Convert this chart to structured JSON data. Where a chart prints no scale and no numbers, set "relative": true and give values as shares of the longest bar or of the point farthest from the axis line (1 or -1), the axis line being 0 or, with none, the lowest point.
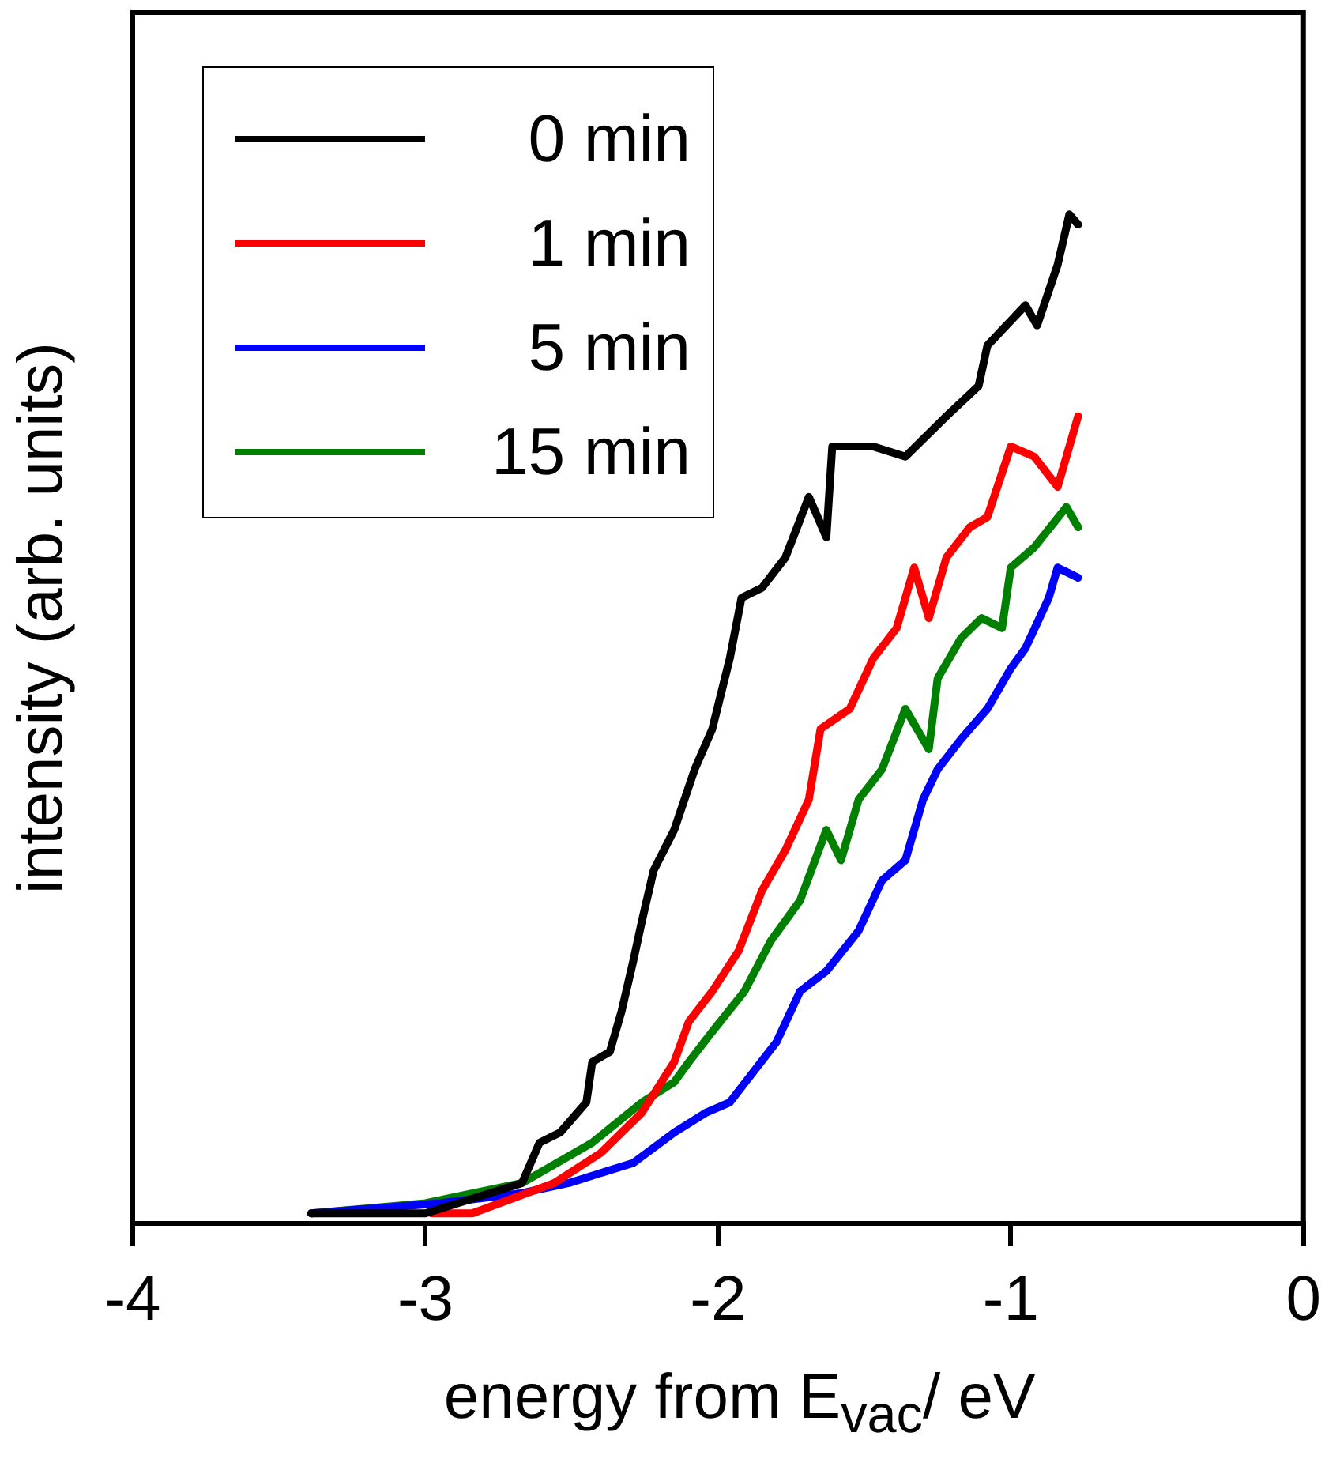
{
  "chart_data": {
    "type": "line",
    "xlabel": "energy from E$_{vac}$/ eV",
    "ylabel": "intensity (arb. units)",
    "relative": true,
    "xlim": [
      -4,
      0
    ],
    "xticks": [
      -4,
      -3,
      -2,
      -1,
      0
    ],
    "grid": false,
    "legend": "top left",
    "line_style": "solid",
    "marker": "none",
    "series": [
      {
        "name": "0 min",
        "color": "#000000",
        "x": [
          -3.39,
          -3.0,
          -2.67,
          -2.61,
          -2.54,
          -2.45,
          -2.43,
          -2.37,
          -2.33,
          -2.29,
          -2.26,
          -2.22,
          -2.15,
          -2.08,
          -2.02,
          -1.96,
          -1.92,
          -1.85,
          -1.77,
          -1.69,
          -1.63,
          -1.61,
          -1.47,
          -1.36,
          -1.22,
          -1.11,
          -1.08,
          -0.95,
          -0.91,
          -0.84,
          -0.8,
          -0.77
        ],
        "values": [
          0.01,
          0.01,
          0.04,
          0.08,
          0.09,
          0.12,
          0.16,
          0.17,
          0.21,
          0.26,
          0.3,
          0.35,
          0.39,
          0.45,
          0.49,
          0.56,
          0.62,
          0.63,
          0.66,
          0.72,
          0.68,
          0.77,
          0.77,
          0.76,
          0.8,
          0.83,
          0.87,
          0.91,
          0.89,
          0.95,
          1.0,
          0.99
        ]
      },
      {
        "name": "1 min",
        "color": "#ff0000",
        "x": [
          -2.98,
          -2.84,
          -2.56,
          -2.4,
          -2.26,
          -2.15,
          -2.1,
          -2.02,
          -1.93,
          -1.85,
          -1.77,
          -1.69,
          -1.65,
          -1.55,
          -1.47,
          -1.39,
          -1.33,
          -1.28,
          -1.22,
          -1.14,
          -1.08,
          -1.0,
          -0.92,
          -0.84,
          -0.77
        ],
        "values": [
          0.01,
          0.01,
          0.04,
          0.07,
          0.11,
          0.16,
          0.2,
          0.23,
          0.27,
          0.33,
          0.37,
          0.42,
          0.49,
          0.51,
          0.56,
          0.59,
          0.65,
          0.6,
          0.66,
          0.69,
          0.7,
          0.77,
          0.76,
          0.73,
          0.8
        ]
      },
      {
        "name": "5 min",
        "color": "#0000ff",
        "x": [
          -3.39,
          -2.95,
          -2.67,
          -2.51,
          -2.29,
          -2.15,
          -2.04,
          -1.96,
          -1.88,
          -1.8,
          -1.72,
          -1.63,
          -1.52,
          -1.44,
          -1.36,
          -1.3,
          -1.25,
          -1.17,
          -1.08,
          -1.0,
          -0.95,
          -0.87,
          -0.84,
          -0.77
        ],
        "values": [
          0.01,
          0.02,
          0.03,
          0.04,
          0.06,
          0.09,
          0.11,
          0.12,
          0.15,
          0.18,
          0.23,
          0.25,
          0.29,
          0.34,
          0.36,
          0.42,
          0.45,
          0.48,
          0.51,
          0.55,
          0.57,
          0.62,
          0.65,
          0.64
        ]
      },
      {
        "name": "15 min",
        "color": "#008000",
        "x": [
          -3.39,
          -3.0,
          -2.67,
          -2.43,
          -2.26,
          -2.15,
          -2.1,
          -2.02,
          -1.91,
          -1.82,
          -1.72,
          -1.63,
          -1.58,
          -1.52,
          -1.44,
          -1.36,
          -1.28,
          -1.25,
          -1.17,
          -1.1,
          -1.03,
          -1.0,
          -0.92,
          -0.81,
          -0.77
        ],
        "values": [
          0.01,
          0.02,
          0.04,
          0.08,
          0.12,
          0.14,
          0.16,
          0.19,
          0.23,
          0.28,
          0.32,
          0.39,
          0.36,
          0.42,
          0.45,
          0.51,
          0.47,
          0.54,
          0.58,
          0.6,
          0.59,
          0.65,
          0.67,
          0.71,
          0.69
        ]
      }
    ]
  }
}
